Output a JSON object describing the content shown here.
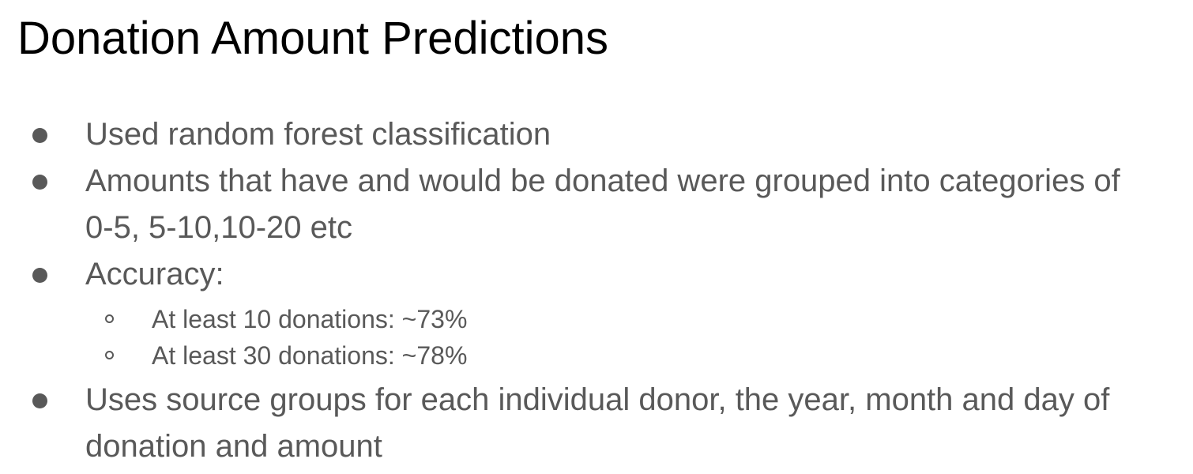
{
  "slide": {
    "title": "Donation Amount Predictions",
    "bullets": [
      {
        "lines": [
          "Used random forest classification"
        ]
      },
      {
        "lines": [
          "Amounts that have and would be donated were grouped into categories of",
          "0-5, 5-10,10-20 etc"
        ]
      },
      {
        "lines": [
          "Accuracy:"
        ],
        "sub": [
          "At least 10 donations: ~73%",
          "At least 30 donations: ~78%"
        ]
      },
      {
        "lines": [
          "Uses source groups for each individual donor, the year, month and day of",
          "donation and amount"
        ]
      }
    ]
  },
  "colors": {
    "title": "#000000",
    "body_text": "#595959",
    "background": "#ffffff"
  },
  "icons": {
    "bullet": "filled-circle",
    "sub_bullet": "hollow-circle"
  }
}
